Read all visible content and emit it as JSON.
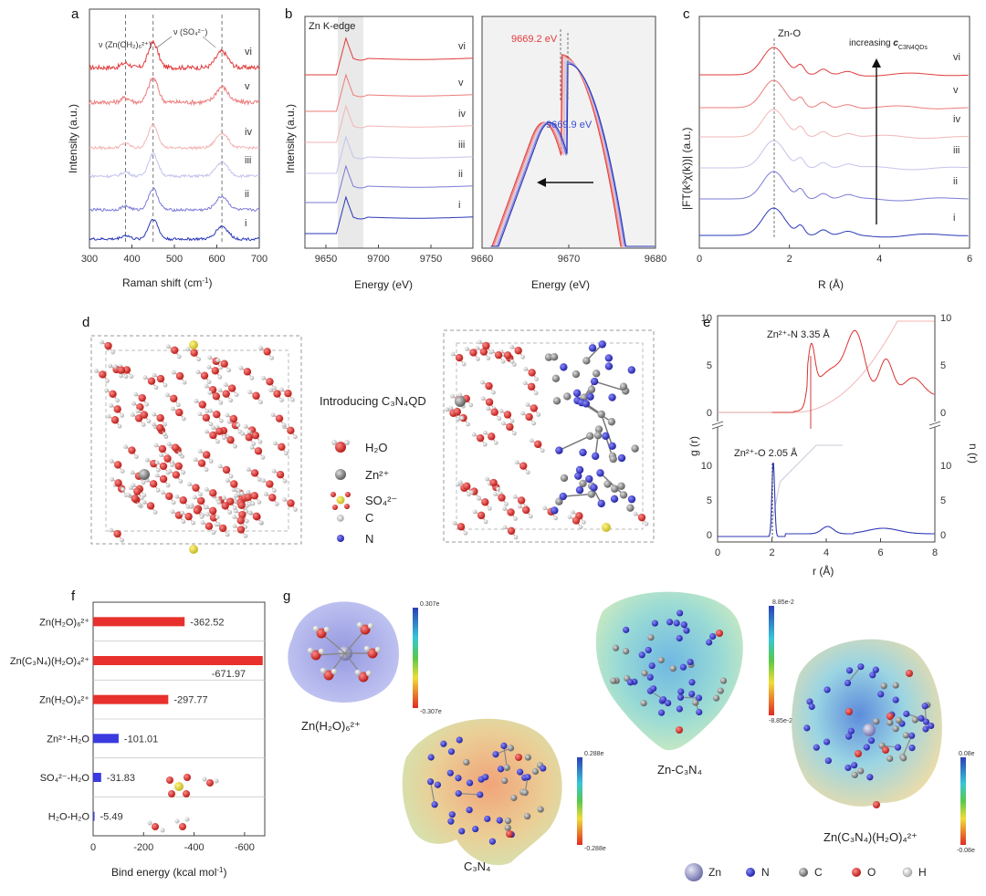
{
  "panel_labels": {
    "a": "a",
    "b": "b",
    "c": "c",
    "d": "d",
    "e": "e",
    "f": "f",
    "g": "g"
  },
  "panel_a": {
    "xlabel": "Raman shift (cm",
    "xlabel_sup": "-1",
    "xlabel_end": ")",
    "ylabel": "Intensity (a.u.)",
    "xticks": [
      "300",
      "400",
      "500",
      "600",
      "700"
    ],
    "xlim": [
      300,
      700
    ],
    "peak_label_1": "ν (Zn(OH₂)₆²⁺)",
    "peak_label_2": "ν (SO₄²⁻)",
    "dashed_positions": [
      385,
      450,
      612
    ],
    "curve_labels": [
      "vi",
      "v",
      "iv",
      "iii",
      "ii",
      "i"
    ],
    "curve_colors": [
      "#e23b3b",
      "#ec7b7b",
      "#f2b6b6",
      "#c4c4ec",
      "#7a7ad8",
      "#2a38b8"
    ]
  },
  "panel_b": {
    "edge_label": "Zn K-edge",
    "xlabel": "Energy (eV)",
    "ylabel": "Intensity (a.u.)",
    "xticks": [
      "9650",
      "9700",
      "9750"
    ],
    "curve_labels": [
      "vi",
      "v",
      "iv",
      "iii",
      "ii",
      "i"
    ],
    "inset_xlabel": "Energy (eV)",
    "inset_xticks": [
      "9660",
      "9670",
      "9680"
    ],
    "peak_red": "9669.2 eV",
    "peak_blue": "9669.9 eV"
  },
  "panel_c": {
    "peak_label": "Zn-O",
    "arrow_label": "increasing ",
    "arrow_label_c": "c",
    "arrow_label_sub": "C3N4QDs",
    "ylabel": "|FT(k³χ(k))| (a.u.)",
    "xlabel": "R (Å)",
    "xticks": [
      "0",
      "2",
      "4",
      "6"
    ],
    "curve_labels": [
      "vi",
      "v",
      "iv",
      "iii",
      "ii",
      "i"
    ]
  },
  "panel_d": {
    "center_label": "Introducing C₃N₄QD",
    "legend": [
      {
        "label": "H₂O"
      },
      {
        "label": "Zn²⁺"
      },
      {
        "label": "SO₄²⁻"
      },
      {
        "label": "C"
      },
      {
        "label": "N"
      }
    ]
  },
  "panel_e": {
    "top_label": "Zn²⁺-N   3.35 Å",
    "bottom_label": "Zn²⁺-O   2.05 Å",
    "ylabel_left": "g (r)",
    "ylabel_right": "n (r)",
    "xlabel": "r (Å)",
    "xticks": [
      "0",
      "2",
      "4",
      "6",
      "8"
    ],
    "top_yticks": [
      "0",
      "5",
      "10"
    ],
    "bottom_yticks": [
      "0",
      "5",
      "10"
    ],
    "right_top_yticks": [
      "0",
      "5",
      "10"
    ],
    "right_bottom_yticks": [
      "0",
      "5",
      "10"
    ]
  },
  "chart_data": [
    {
      "type": "bar",
      "title": "f",
      "orientation": "horizontal",
      "categories": [
        "Zn(H₂O)₆²⁺",
        "Zn(C₃N₄)(H₂O)₄²⁺",
        "Zn(H₂O)₄²⁺",
        "Zn²⁺-H₂O",
        "SO₄²⁻-H₂O",
        "H₂O-H₂O"
      ],
      "values": [
        -362.52,
        -671.97,
        -297.77,
        -101.01,
        -31.83,
        -5.49
      ],
      "value_labels": [
        "-362.52",
        "-671.97",
        "-297.77",
        "-101.01",
        "-31.83",
        "-5.49"
      ],
      "colors": [
        "#e8312d",
        "#e8312d",
        "#e8312d",
        "#3a3ae0",
        "#3a3ae0",
        "#3a3ae0"
      ],
      "xlabel": "Bind energy (kcal mol",
      "xlabel_sup": "-1",
      "xlabel_end": ")",
      "xticks": [
        "0",
        "-200",
        "-400",
        "-600"
      ],
      "xlim": [
        0,
        -680
      ]
    }
  ],
  "panel_g": {
    "mol1": "Zn(H₂O)₆²⁺",
    "mol2": "C₃N₄",
    "mol3": "Zn-C₃N₄",
    "mol4": "Zn(C₃N₄)(H₂O)₄²⁺",
    "scale1": [
      "0.307e",
      "-0.307e"
    ],
    "scale2": [
      "0.288e",
      "-0.288e"
    ],
    "scale3": [
      "8.85e-2",
      "-8.85e-2"
    ],
    "scale4": [
      "0.08e",
      "-0.08e"
    ],
    "legend": [
      "Zn",
      "N",
      "C",
      "O",
      "H"
    ]
  }
}
